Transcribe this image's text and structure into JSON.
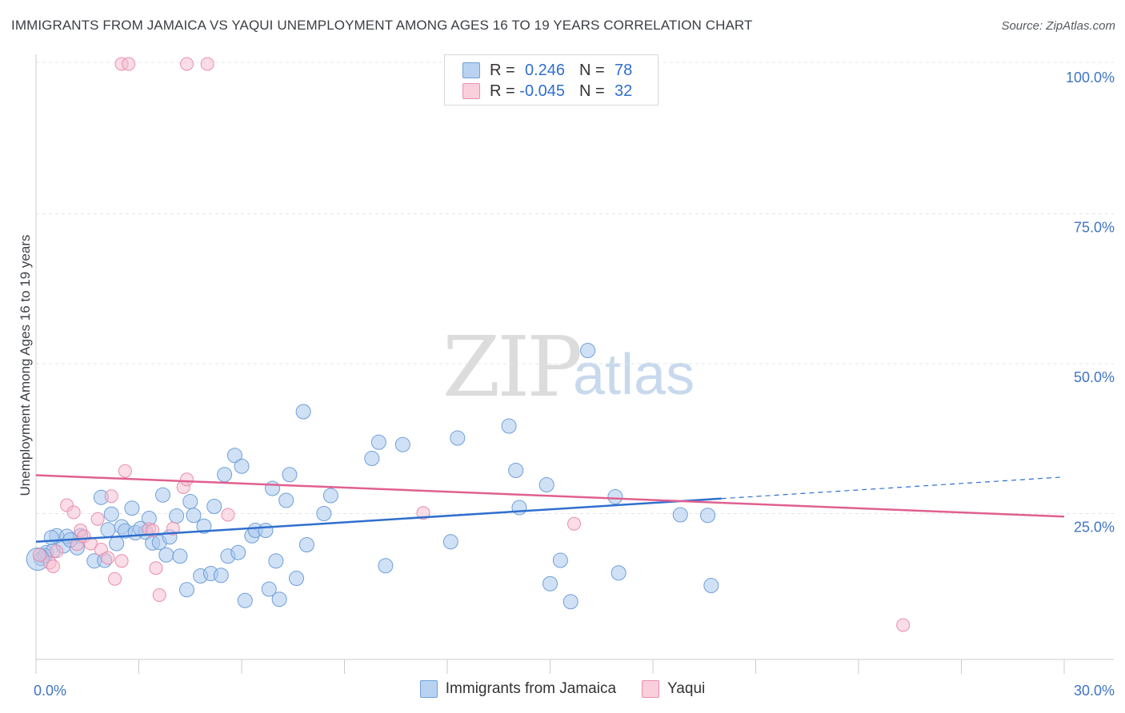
{
  "title": "IMMIGRANTS FROM JAMAICA VS YAQUI UNEMPLOYMENT AMONG AGES 16 TO 19 YEARS CORRELATION CHART",
  "source": "Source: ZipAtlas.com",
  "watermark": {
    "zip": "ZIP",
    "atlas": "atlas"
  },
  "legend": {
    "rows": [
      {
        "r_label": "R =",
        "r_value": "0.246",
        "n_label": "N =",
        "n_value": "78"
      },
      {
        "r_label": "R =",
        "r_value": "-0.045",
        "n_label": "N =",
        "n_value": "32"
      }
    ]
  },
  "bottom_legend": {
    "series1": "Immigrants from Jamaica",
    "series2": "Yaqui"
  },
  "colors": {
    "series1_fill": "#a9c8ef",
    "series1_stroke": "#6f9fd8",
    "series1_line": "#2f6fcd",
    "series2_fill": "#f6bccd",
    "series2_stroke": "#e98fae",
    "series2_line": "#e0608f",
    "axis_text": "#3f74c4",
    "grid": "#e3e5e8"
  },
  "chart_data": {
    "type": "scatter",
    "title": "IMMIGRANTS FROM JAMAICA VS YAQUI UNEMPLOYMENT AMONG AGES 16 TO 19 YEARS CORRELATION CHART",
    "xlabel": "",
    "ylabel": "Unemployment Among Ages 16 to 19 years",
    "xlim": [
      0,
      30
    ],
    "ylim": [
      0,
      102
    ],
    "x_tick_labels": [
      "0.0%",
      "30.0%"
    ],
    "y_ticks": [
      25,
      50,
      75,
      100
    ],
    "y_tick_labels": [
      "25.0%",
      "50.0%",
      "75.0%",
      "100.0%"
    ],
    "series": [
      {
        "name": "Immigrants from Jamaica",
        "r": 0.246,
        "n": 78,
        "trend": {
          "x0": 0,
          "y0": 20.3,
          "x1": 20,
          "y1": 27.5,
          "dashed_to_x": 30,
          "dashed_to_y": 31.1
        },
        "points": [
          [
            0.15,
            17.5
          ],
          [
            0.3,
            18.5
          ],
          [
            0.5,
            18.8
          ],
          [
            0.8,
            19.6
          ],
          [
            0.6,
            21.3
          ],
          [
            0.9,
            21.2
          ],
          [
            1.3,
            21.3
          ],
          [
            1.2,
            19.3
          ],
          [
            1.7,
            17.1
          ],
          [
            2.0,
            17.2
          ],
          [
            1.9,
            27.7
          ],
          [
            2.2,
            24.9
          ],
          [
            2.1,
            22.3
          ],
          [
            2.5,
            22.8
          ],
          [
            2.6,
            22.1
          ],
          [
            2.8,
            25.9
          ],
          [
            2.9,
            21.8
          ],
          [
            3.2,
            21.9
          ],
          [
            3.3,
            24.2
          ],
          [
            3.4,
            20.1
          ],
          [
            3.6,
            20.2
          ],
          [
            3.7,
            28.1
          ],
          [
            3.8,
            18.1
          ],
          [
            3.9,
            21.1
          ],
          [
            4.1,
            24.6
          ],
          [
            4.2,
            17.9
          ],
          [
            4.4,
            12.3
          ],
          [
            4.5,
            27.0
          ],
          [
            4.6,
            24.7
          ],
          [
            4.8,
            14.6
          ],
          [
            4.9,
            22.9
          ],
          [
            5.1,
            15.0
          ],
          [
            5.2,
            26.2
          ],
          [
            5.4,
            14.7
          ],
          [
            5.5,
            31.5
          ],
          [
            5.6,
            17.9
          ],
          [
            5.8,
            34.7
          ],
          [
            5.9,
            18.5
          ],
          [
            6.0,
            32.9
          ],
          [
            6.1,
            10.5
          ],
          [
            6.3,
            21.3
          ],
          [
            6.4,
            22.2
          ],
          [
            6.7,
            22.2
          ],
          [
            6.8,
            12.4
          ],
          [
            6.9,
            29.2
          ],
          [
            7.0,
            17.1
          ],
          [
            7.1,
            10.7
          ],
          [
            7.3,
            27.2
          ],
          [
            7.4,
            31.5
          ],
          [
            7.6,
            14.2
          ],
          [
            7.8,
            42.0
          ],
          [
            7.9,
            19.8
          ],
          [
            8.4,
            25.0
          ],
          [
            8.6,
            28.0
          ],
          [
            9.8,
            34.2
          ],
          [
            10.0,
            36.9
          ],
          [
            10.2,
            16.3
          ],
          [
            10.7,
            36.5
          ],
          [
            12.1,
            20.3
          ],
          [
            12.3,
            37.6
          ],
          [
            13.8,
            39.6
          ],
          [
            14.0,
            32.2
          ],
          [
            14.1,
            26.0
          ],
          [
            14.9,
            29.8
          ],
          [
            15.0,
            13.3
          ],
          [
            15.3,
            17.2
          ],
          [
            15.6,
            10.3
          ],
          [
            16.1,
            52.2
          ],
          [
            16.9,
            27.8
          ],
          [
            17.0,
            15.1
          ],
          [
            18.8,
            24.8
          ],
          [
            19.7,
            13.0
          ],
          [
            19.6,
            24.7
          ],
          [
            0.25,
            18.0
          ],
          [
            0.45,
            21.0
          ],
          [
            1.0,
            20.6
          ],
          [
            2.35,
            20.0
          ],
          [
            3.05,
            22.5
          ]
        ]
      },
      {
        "name": "Yaqui",
        "r": -0.045,
        "n": 32,
        "trend": {
          "x0": 0,
          "y0": 31.4,
          "x1": 30,
          "y1": 24.5
        },
        "points": [
          [
            0.1,
            18.1
          ],
          [
            0.4,
            16.8
          ],
          [
            0.5,
            16.2
          ],
          [
            0.6,
            18.7
          ],
          [
            0.9,
            26.4
          ],
          [
            1.1,
            25.2
          ],
          [
            1.2,
            19.9
          ],
          [
            1.3,
            22.2
          ],
          [
            1.4,
            21.2
          ],
          [
            1.6,
            20.0
          ],
          [
            1.8,
            24.1
          ],
          [
            1.9,
            19.0
          ],
          [
            2.1,
            17.6
          ],
          [
            2.2,
            27.9
          ],
          [
            2.3,
            14.1
          ],
          [
            2.5,
            17.1
          ],
          [
            2.6,
            32.1
          ],
          [
            3.3,
            22.4
          ],
          [
            3.4,
            22.2
          ],
          [
            3.5,
            15.9
          ],
          [
            3.6,
            11.4
          ],
          [
            4.0,
            22.5
          ],
          [
            4.3,
            29.4
          ],
          [
            4.4,
            30.7
          ],
          [
            5.6,
            24.8
          ],
          [
            11.3,
            25.1
          ],
          [
            15.7,
            23.3
          ],
          [
            25.3,
            6.4
          ],
          [
            2.5,
            100.0
          ],
          [
            2.7,
            100.0
          ],
          [
            4.4,
            100.0
          ],
          [
            5.0,
            100.0
          ]
        ]
      }
    ]
  }
}
